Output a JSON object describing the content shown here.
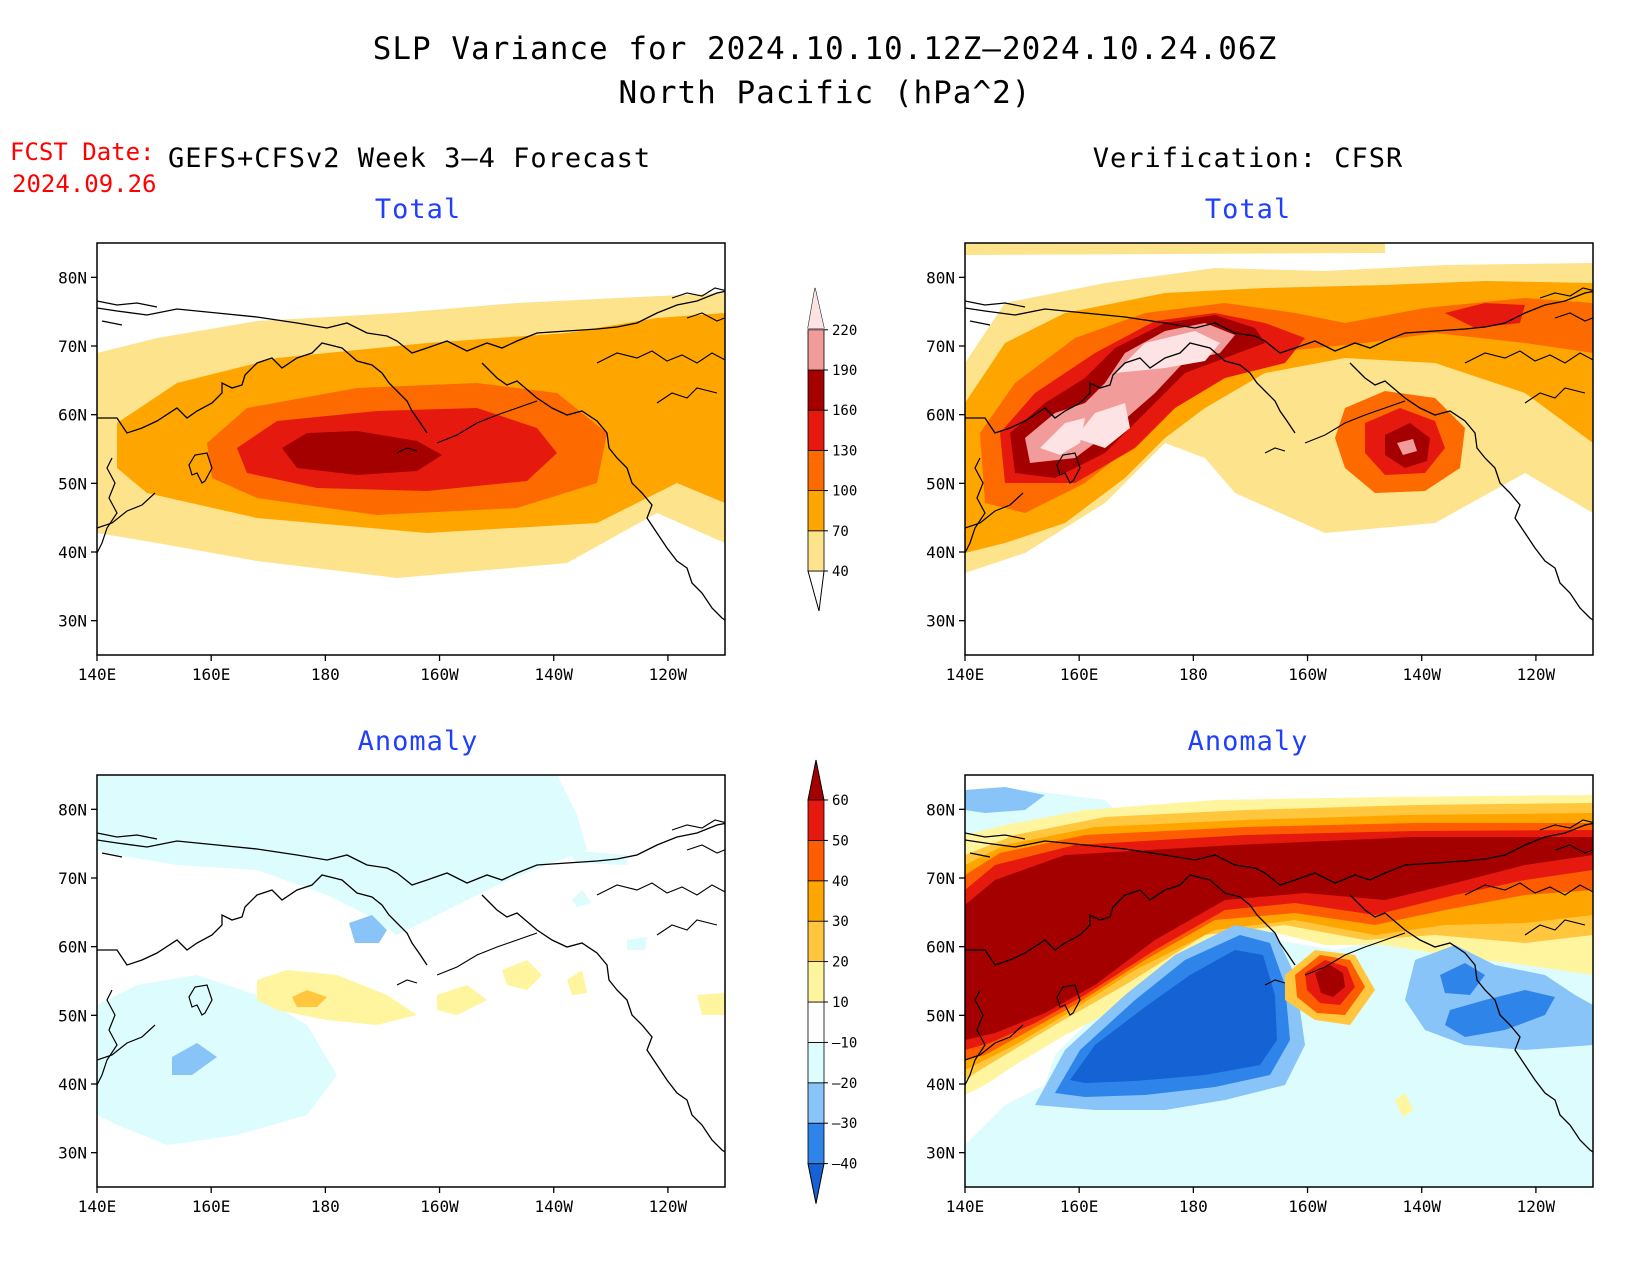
{
  "title": {
    "line1": "SLP Variance for 2024.10.10.12Z–2024.10.24.06Z",
    "line2": "North Pacific (hPa^2)"
  },
  "fcst": {
    "label": "FCST Date:",
    "date": "2024.09.26"
  },
  "headers": {
    "forecast": "GEFS+CFSv2 Week 3–4 Forecast",
    "verification": "Verification: CFSR"
  },
  "panel_titles": {
    "fcst_total": "Total",
    "ver_total": "Total",
    "fcst_anom": "Anomaly",
    "ver_anom": "Anomaly"
  },
  "axes": {
    "lon_labels": [
      "140E",
      "160E",
      "180",
      "160W",
      "140W",
      "120W"
    ],
    "lat_labels": [
      "80N",
      "70N",
      "60N",
      "50N",
      "40N",
      "30N"
    ],
    "lon_range_east": [
      140,
      250
    ],
    "lat_range": [
      25,
      85
    ]
  },
  "colorbars": {
    "total": {
      "levels": [
        "40",
        "70",
        "100",
        "130",
        "160",
        "190",
        "220"
      ],
      "colors": [
        "#fee38d",
        "#ffa500",
        "#fd6a00",
        "#e6190f",
        "#a50000",
        "#f19b9b",
        "#fde3e3"
      ]
    },
    "anomaly": {
      "levels": [
        "–40",
        "–30",
        "–20",
        "–10",
        "10",
        "20",
        "30",
        "40",
        "50",
        "60"
      ],
      "colors": [
        "#1462d3",
        "#2f84e9",
        "#88c4f8",
        "#dcfcfe",
        "#ffffff",
        "#fff59e",
        "#ffc63e",
        "#ffa500",
        "#fd5d00",
        "#e6190f",
        "#a50000"
      ]
    }
  },
  "chart_data": [
    {
      "type": "heatmap",
      "title": "Total",
      "source": "GEFS+CFSv2 Week 3–4 Forecast",
      "unit": "hPa^2",
      "features": [
        {
          "lon": 183,
          "lat": 52,
          "value": 165
        },
        {
          "lon": 210,
          "lat": 53,
          "value": 140
        },
        {
          "lon": 195,
          "lat": 50,
          "value": 120
        },
        {
          "lon": 235,
          "lat": 62,
          "value": 85
        }
      ]
    },
    {
      "type": "heatmap",
      "title": "Total",
      "source": "Verification: CFSR",
      "unit": "hPa^2",
      "features": [
        {
          "lon": 160,
          "lat": 55,
          "value": 225
        },
        {
          "lon": 185,
          "lat": 68,
          "value": 225
        },
        {
          "lon": 206,
          "lat": 53,
          "value": 200
        },
        {
          "lon": 232,
          "lat": 73,
          "value": 150
        }
      ]
    },
    {
      "type": "heatmap",
      "title": "Anomaly",
      "source": "GEFS+CFSv2 Week 3–4 Forecast",
      "unit": "hPa^2",
      "features": [
        {
          "lon": 180,
          "lat": 53,
          "value": 25
        },
        {
          "lon": 192,
          "lat": 62,
          "value": -25
        },
        {
          "lon": 166,
          "lat": 43,
          "value": -25
        },
        {
          "lon": 210,
          "lat": 53,
          "value": 15
        }
      ]
    },
    {
      "type": "heatmap",
      "title": "Anomaly",
      "source": "Verification: CFSR",
      "unit": "hPa^2",
      "features": [
        {
          "lon": 190,
          "lat": 70,
          "value": 65
        },
        {
          "lon": 180,
          "lat": 48,
          "value": -45
        },
        {
          "lon": 203,
          "lat": 54,
          "value": 55
        },
        {
          "lon": 232,
          "lat": 50,
          "value": -35
        }
      ]
    }
  ]
}
